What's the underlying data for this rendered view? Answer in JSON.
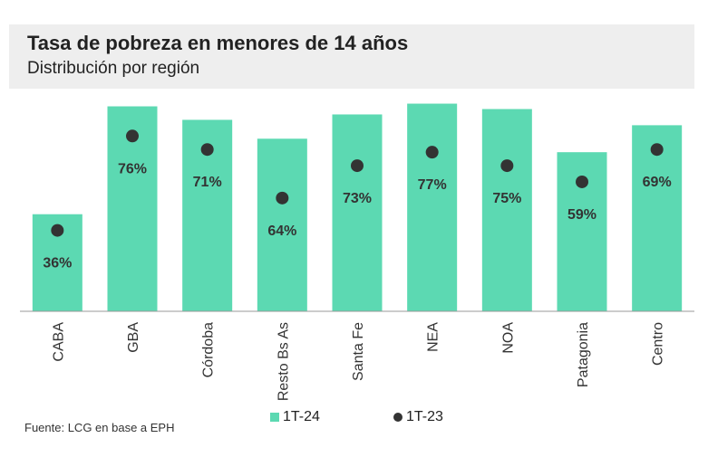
{
  "header": {
    "title": "Tasa de pobreza en menores de 14 años",
    "subtitle": "Distribución por región"
  },
  "source": "Fuente: LCG en base a EPH",
  "colors": {
    "bar": "#5cd9b2",
    "dot": "#333333",
    "axis": "#999999",
    "header_bg": "#eeeeee"
  },
  "chart_data": {
    "type": "bar",
    "title": "Tasa de pobreza en menores de 14 años",
    "subtitle": "Distribución por región",
    "categories": [
      "CABA",
      "GBA",
      "Córdoba",
      "Resto Bs As",
      "Santa Fe",
      "NEA",
      "NOA",
      "Patagonia",
      "Centro"
    ],
    "ylim": [
      0,
      80
    ],
    "grid": false,
    "legend_position": "bottom",
    "series": [
      {
        "name": "1T-24",
        "kind": "bar",
        "values": [
          36,
          76,
          71,
          64,
          73,
          77,
          75,
          59,
          69
        ],
        "labels": [
          "36%",
          "76%",
          "71%",
          "64%",
          "73%",
          "77%",
          "75%",
          "59%",
          "69%"
        ]
      },
      {
        "name": "1T-23",
        "kind": "dot",
        "values": [
          30,
          65,
          60,
          42,
          54,
          59,
          54,
          48,
          60
        ]
      }
    ]
  }
}
